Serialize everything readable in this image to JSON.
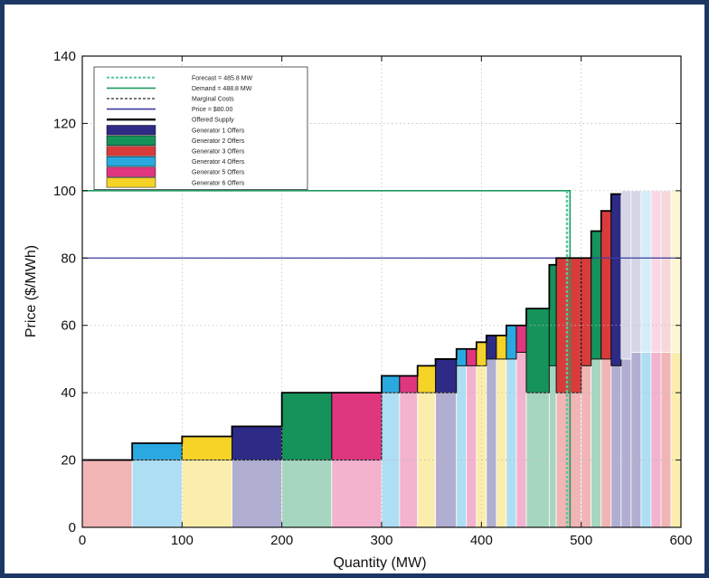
{
  "chart_data": {
    "type": "bar",
    "title": "",
    "xlabel": "Quantity (MW)",
    "ylabel": "Price ($/MWh)",
    "xlim": [
      0,
      600
    ],
    "ylim": [
      0,
      140
    ],
    "xticks": [
      0,
      100,
      200,
      300,
      400,
      500,
      600
    ],
    "yticks": [
      0,
      20,
      40,
      60,
      80,
      100,
      120,
      140
    ],
    "grid": true,
    "legend_position": "top-left",
    "colors": {
      "gen1": "#2e2b86",
      "gen2": "#15935a",
      "gen3": "#d93b3b",
      "gen4": "#2aa9e0",
      "gen5": "#e0357f",
      "gen6": "#f5d327",
      "forecast": "#55c7a0",
      "demand": "#1f9a5f",
      "marginal": "#7a7a7a",
      "price": "#3b3ba0",
      "supply": "#000000"
    },
    "lines": {
      "forecast_mw": 485.8,
      "demand_mw": 488.8,
      "demand_price_cap": 100,
      "price": 80
    },
    "legend": [
      {
        "key": "forecast",
        "label": "Forecast = 485.8 MW",
        "kind": "dashed"
      },
      {
        "key": "demand",
        "label": "Demand = 488.8 MW",
        "kind": "line"
      },
      {
        "key": "marginal",
        "label": "Marginal Costs",
        "kind": "dashed"
      },
      {
        "key": "price",
        "label": "Price = $80.00",
        "kind": "line"
      },
      {
        "key": "supply",
        "label": "Offered Supply",
        "kind": "thick"
      },
      {
        "key": "gen1",
        "label": "Generator 1 Offers",
        "kind": "patch"
      },
      {
        "key": "gen2",
        "label": "Generator 2 Offers",
        "kind": "patch"
      },
      {
        "key": "gen3",
        "label": "Generator 3 Offers",
        "kind": "patch"
      },
      {
        "key": "gen4",
        "label": "Generator 4 Offers",
        "kind": "patch"
      },
      {
        "key": "gen5",
        "label": "Generator 5 Offers",
        "kind": "patch"
      },
      {
        "key": "gen6",
        "label": "Generator 6 Offers",
        "kind": "patch"
      }
    ],
    "cost_blocks": [
      {
        "gen": "gen3",
        "x0": 0,
        "x1": 50,
        "cost": 20
      },
      {
        "gen": "gen4",
        "x0": 50,
        "x1": 100,
        "cost": 20
      },
      {
        "gen": "gen6",
        "x0": 100,
        "x1": 150,
        "cost": 20
      },
      {
        "gen": "gen1",
        "x0": 150,
        "x1": 200,
        "cost": 20
      },
      {
        "gen": "gen2",
        "x0": 200,
        "x1": 250,
        "cost": 20
      },
      {
        "gen": "gen5",
        "x0": 250,
        "x1": 300,
        "cost": 20
      },
      {
        "gen": "gen4",
        "x0": 300,
        "x1": 318,
        "cost": 40
      },
      {
        "gen": "gen5",
        "x0": 318,
        "x1": 336,
        "cost": 40
      },
      {
        "gen": "gen6",
        "x0": 336,
        "x1": 354,
        "cost": 40
      },
      {
        "gen": "gen1",
        "x0": 354,
        "x1": 375,
        "cost": 40
      },
      {
        "gen": "gen4",
        "x0": 375,
        "x1": 385,
        "cost": 48
      },
      {
        "gen": "gen5",
        "x0": 385,
        "x1": 395,
        "cost": 48
      },
      {
        "gen": "gen6",
        "x0": 395,
        "x1": 405,
        "cost": 48
      },
      {
        "gen": "gen1",
        "x0": 405,
        "x1": 415,
        "cost": 50
      },
      {
        "gen": "gen6",
        "x0": 415,
        "x1": 425,
        "cost": 50
      },
      {
        "gen": "gen4",
        "x0": 425,
        "x1": 435,
        "cost": 50
      },
      {
        "gen": "gen5",
        "x0": 435,
        "x1": 445,
        "cost": 52
      },
      {
        "gen": "gen2",
        "x0": 445,
        "x1": 468,
        "cost": 40
      },
      {
        "gen": "gen2",
        "x0": 468,
        "x1": 475,
        "cost": 48
      },
      {
        "gen": "gen3",
        "x0": 475,
        "x1": 500,
        "cost": 40
      },
      {
        "gen": "gen3",
        "x0": 500,
        "x1": 510,
        "cost": 48
      },
      {
        "gen": "gen2",
        "x0": 510,
        "x1": 520,
        "cost": 50
      },
      {
        "gen": "gen3",
        "x0": 520,
        "x1": 530,
        "cost": 50
      },
      {
        "gen": "gen1",
        "x0": 530,
        "x1": 540,
        "cost": 48
      },
      {
        "gen": "gen1",
        "x0": 540,
        "x1": 550,
        "cost": 50
      },
      {
        "gen": "gen1",
        "x0": 550,
        "x1": 560,
        "cost": 52
      },
      {
        "gen": "gen4",
        "x0": 560,
        "x1": 570,
        "cost": 52
      },
      {
        "gen": "gen5",
        "x0": 570,
        "x1": 580,
        "cost": 52
      },
      {
        "gen": "gen3",
        "x0": 580,
        "x1": 590,
        "cost": 52
      },
      {
        "gen": "gen6",
        "x0": 590,
        "x1": 600,
        "cost": 52
      }
    ],
    "offer_steps": [
      {
        "gen": "gen3",
        "x0": 0,
        "x1": 50,
        "cost": 20,
        "price": 20
      },
      {
        "gen": "gen4",
        "x0": 50,
        "x1": 100,
        "cost": 20,
        "price": 25
      },
      {
        "gen": "gen6",
        "x0": 100,
        "x1": 150,
        "cost": 20,
        "price": 27
      },
      {
        "gen": "gen1",
        "x0": 150,
        "x1": 200,
        "cost": 20,
        "price": 30
      },
      {
        "gen": "gen2",
        "x0": 200,
        "x1": 250,
        "cost": 20,
        "price": 40
      },
      {
        "gen": "gen5",
        "x0": 250,
        "x1": 300,
        "cost": 20,
        "price": 40
      },
      {
        "gen": "gen4",
        "x0": 300,
        "x1": 318,
        "cost": 40,
        "price": 45
      },
      {
        "gen": "gen5",
        "x0": 318,
        "x1": 336,
        "cost": 40,
        "price": 45
      },
      {
        "gen": "gen6",
        "x0": 336,
        "x1": 354,
        "cost": 40,
        "price": 48
      },
      {
        "gen": "gen1",
        "x0": 354,
        "x1": 375,
        "cost": 40,
        "price": 50
      },
      {
        "gen": "gen4",
        "x0": 375,
        "x1": 385,
        "cost": 48,
        "price": 53
      },
      {
        "gen": "gen5",
        "x0": 385,
        "x1": 395,
        "cost": 48,
        "price": 53
      },
      {
        "gen": "gen6",
        "x0": 395,
        "x1": 405,
        "cost": 48,
        "price": 55
      },
      {
        "gen": "gen1",
        "x0": 405,
        "x1": 415,
        "cost": 50,
        "price": 57
      },
      {
        "gen": "gen6",
        "x0": 415,
        "x1": 425,
        "cost": 50,
        "price": 57
      },
      {
        "gen": "gen4",
        "x0": 425,
        "x1": 435,
        "cost": 50,
        "price": 60
      },
      {
        "gen": "gen5",
        "x0": 435,
        "x1": 445,
        "cost": 52,
        "price": 60
      },
      {
        "gen": "gen2",
        "x0": 445,
        "x1": 468,
        "cost": 40,
        "price": 65
      },
      {
        "gen": "gen2",
        "x0": 468,
        "x1": 475,
        "cost": 48,
        "price": 78
      },
      {
        "gen": "gen3",
        "x0": 475,
        "x1": 500,
        "cost": 40,
        "price": 80
      },
      {
        "gen": "gen3",
        "x0": 500,
        "x1": 510,
        "cost": 48,
        "price": 80
      },
      {
        "gen": "gen2",
        "x0": 510,
        "x1": 520,
        "cost": 50,
        "price": 88
      },
      {
        "gen": "gen3",
        "x0": 520,
        "x1": 530,
        "cost": 50,
        "price": 94
      },
      {
        "gen": "gen1",
        "x0": 530,
        "x1": 540,
        "cost": 48,
        "price": 99
      }
    ],
    "faded_offers": [
      {
        "gen": "gen1",
        "x0": 540,
        "x1": 550,
        "cost": 50,
        "price": 100
      },
      {
        "gen": "gen1",
        "x0": 550,
        "x1": 560,
        "cost": 52,
        "price": 100
      },
      {
        "gen": "gen4",
        "x0": 560,
        "x1": 570,
        "cost": 52,
        "price": 100
      },
      {
        "gen": "gen5",
        "x0": 570,
        "x1": 580,
        "cost": 52,
        "price": 100
      },
      {
        "gen": "gen3",
        "x0": 580,
        "x1": 590,
        "cost": 52,
        "price": 100
      },
      {
        "gen": "gen6",
        "x0": 590,
        "x1": 600,
        "cost": 52,
        "price": 100
      }
    ]
  }
}
